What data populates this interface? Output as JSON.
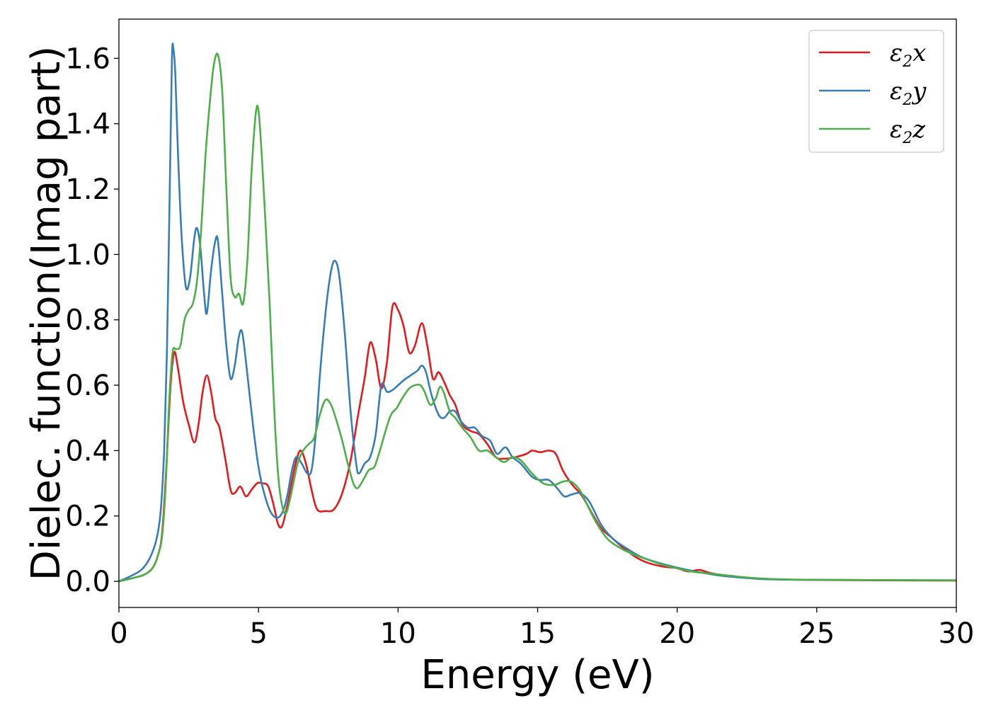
{
  "chart_data": {
    "type": "line",
    "title": "",
    "xlabel": "Energy (eV)",
    "ylabel": "Dielec. function(Imag part)",
    "xlim": [
      0,
      30
    ],
    "ylim": [
      -0.08,
      1.72
    ],
    "x_ticks": [
      0,
      5,
      10,
      15,
      20,
      25,
      30
    ],
    "x_tick_labels": [
      "0",
      "5",
      "10",
      "15",
      "20",
      "25",
      "30"
    ],
    "y_ticks": [
      0.0,
      0.2,
      0.4,
      0.6,
      0.8,
      1.0,
      1.2,
      1.4,
      1.6
    ],
    "y_tick_labels": [
      "0.0",
      "0.2",
      "0.4",
      "0.6",
      "0.8",
      "1.0",
      "1.2",
      "1.4",
      "1.6"
    ],
    "grid": false,
    "legend": {
      "position": "top-right",
      "entries": [
        {
          "base": "ε",
          "sub": "2",
          "axis": "x",
          "color": "#e41a1c"
        },
        {
          "base": "ε",
          "sub": "2",
          "axis": "y",
          "color": "#377eb8"
        },
        {
          "base": "ε",
          "sub": "2",
          "axis": "z",
          "color": "#4daf4a"
        }
      ]
    },
    "series": [
      {
        "color": "#e41a1c",
        "points": [
          [
            0,
            0.0
          ],
          [
            0.5,
            0.01
          ],
          [
            0.9,
            0.02
          ],
          [
            1.2,
            0.04
          ],
          [
            1.4,
            0.08
          ],
          [
            1.55,
            0.15
          ],
          [
            1.7,
            0.35
          ],
          [
            1.85,
            0.6
          ],
          [
            1.98,
            0.7
          ],
          [
            2.1,
            0.66
          ],
          [
            2.3,
            0.55
          ],
          [
            2.5,
            0.48
          ],
          [
            2.7,
            0.425
          ],
          [
            2.85,
            0.48
          ],
          [
            3.0,
            0.58
          ],
          [
            3.15,
            0.63
          ],
          [
            3.3,
            0.58
          ],
          [
            3.45,
            0.5
          ],
          [
            3.6,
            0.47
          ],
          [
            3.8,
            0.38
          ],
          [
            4.0,
            0.28
          ],
          [
            4.15,
            0.27
          ],
          [
            4.35,
            0.29
          ],
          [
            4.55,
            0.26
          ],
          [
            4.75,
            0.28
          ],
          [
            4.95,
            0.3
          ],
          [
            5.15,
            0.3
          ],
          [
            5.35,
            0.29
          ],
          [
            5.55,
            0.23
          ],
          [
            5.7,
            0.175
          ],
          [
            5.85,
            0.17
          ],
          [
            6.05,
            0.24
          ],
          [
            6.3,
            0.35
          ],
          [
            6.5,
            0.4
          ],
          [
            6.7,
            0.36
          ],
          [
            6.9,
            0.28
          ],
          [
            7.1,
            0.22
          ],
          [
            7.4,
            0.215
          ],
          [
            7.7,
            0.22
          ],
          [
            8.0,
            0.27
          ],
          [
            8.3,
            0.37
          ],
          [
            8.55,
            0.5
          ],
          [
            8.8,
            0.62
          ],
          [
            9.0,
            0.73
          ],
          [
            9.2,
            0.68
          ],
          [
            9.4,
            0.59
          ],
          [
            9.6,
            0.67
          ],
          [
            9.8,
            0.84
          ],
          [
            10.0,
            0.83
          ],
          [
            10.2,
            0.78
          ],
          [
            10.4,
            0.7
          ],
          [
            10.6,
            0.72
          ],
          [
            10.85,
            0.79
          ],
          [
            11.05,
            0.72
          ],
          [
            11.25,
            0.62
          ],
          [
            11.45,
            0.64
          ],
          [
            11.65,
            0.61
          ],
          [
            11.85,
            0.57
          ],
          [
            12.05,
            0.54
          ],
          [
            12.3,
            0.48
          ],
          [
            12.6,
            0.46
          ],
          [
            12.9,
            0.45
          ],
          [
            13.2,
            0.42
          ],
          [
            13.5,
            0.38
          ],
          [
            13.8,
            0.375
          ],
          [
            14.2,
            0.38
          ],
          [
            14.6,
            0.39
          ],
          [
            14.8,
            0.4
          ],
          [
            15.1,
            0.395
          ],
          [
            15.4,
            0.4
          ],
          [
            15.65,
            0.39
          ],
          [
            15.9,
            0.34
          ],
          [
            16.2,
            0.3
          ],
          [
            16.6,
            0.26
          ],
          [
            17.0,
            0.2
          ],
          [
            17.3,
            0.16
          ],
          [
            17.7,
            0.13
          ],
          [
            18.1,
            0.1
          ],
          [
            18.6,
            0.07
          ],
          [
            19.0,
            0.055
          ],
          [
            19.5,
            0.045
          ],
          [
            20.0,
            0.04
          ],
          [
            20.4,
            0.03
          ],
          [
            20.8,
            0.035
          ],
          [
            21.2,
            0.025
          ],
          [
            22.0,
            0.015
          ],
          [
            23.0,
            0.008
          ],
          [
            25.0,
            0.004
          ],
          [
            30.0,
            0.002
          ]
        ]
      },
      {
        "color": "#377eb8",
        "points": [
          [
            0,
            0.0
          ],
          [
            0.4,
            0.015
          ],
          [
            0.8,
            0.035
          ],
          [
            1.1,
            0.07
          ],
          [
            1.35,
            0.13
          ],
          [
            1.5,
            0.22
          ],
          [
            1.62,
            0.4
          ],
          [
            1.72,
            0.7
          ],
          [
            1.82,
            1.2
          ],
          [
            1.9,
            1.6
          ],
          [
            1.95,
            1.63
          ],
          [
            2.02,
            1.55
          ],
          [
            2.12,
            1.3
          ],
          [
            2.25,
            1.05
          ],
          [
            2.4,
            0.9
          ],
          [
            2.55,
            0.93
          ],
          [
            2.7,
            1.05
          ],
          [
            2.8,
            1.08
          ],
          [
            2.92,
            1.02
          ],
          [
            3.05,
            0.88
          ],
          [
            3.15,
            0.82
          ],
          [
            3.3,
            0.95
          ],
          [
            3.45,
            1.04
          ],
          [
            3.55,
            1.04
          ],
          [
            3.7,
            0.88
          ],
          [
            3.85,
            0.72
          ],
          [
            4.0,
            0.62
          ],
          [
            4.15,
            0.66
          ],
          [
            4.3,
            0.75
          ],
          [
            4.42,
            0.76
          ],
          [
            4.58,
            0.65
          ],
          [
            4.8,
            0.48
          ],
          [
            5.0,
            0.35
          ],
          [
            5.2,
            0.27
          ],
          [
            5.45,
            0.21
          ],
          [
            5.7,
            0.195
          ],
          [
            5.9,
            0.22
          ],
          [
            6.05,
            0.27
          ],
          [
            6.2,
            0.34
          ],
          [
            6.35,
            0.38
          ],
          [
            6.55,
            0.36
          ],
          [
            6.75,
            0.33
          ],
          [
            6.9,
            0.34
          ],
          [
            7.05,
            0.45
          ],
          [
            7.2,
            0.63
          ],
          [
            7.4,
            0.82
          ],
          [
            7.6,
            0.95
          ],
          [
            7.75,
            0.98
          ],
          [
            7.9,
            0.93
          ],
          [
            8.1,
            0.75
          ],
          [
            8.3,
            0.52
          ],
          [
            8.5,
            0.36
          ],
          [
            8.6,
            0.33
          ],
          [
            8.8,
            0.36
          ],
          [
            9.0,
            0.38
          ],
          [
            9.2,
            0.45
          ],
          [
            9.4,
            0.6
          ],
          [
            9.6,
            0.58
          ],
          [
            9.8,
            0.585
          ],
          [
            10.0,
            0.6
          ],
          [
            10.2,
            0.615
          ],
          [
            10.45,
            0.63
          ],
          [
            10.7,
            0.645
          ],
          [
            10.85,
            0.66
          ],
          [
            11.0,
            0.64
          ],
          [
            11.2,
            0.57
          ],
          [
            11.45,
            0.51
          ],
          [
            11.65,
            0.5
          ],
          [
            11.85,
            0.52
          ],
          [
            12.05,
            0.52
          ],
          [
            12.25,
            0.49
          ],
          [
            12.5,
            0.47
          ],
          [
            12.75,
            0.47
          ],
          [
            13.0,
            0.445
          ],
          [
            13.3,
            0.43
          ],
          [
            13.55,
            0.39
          ],
          [
            13.85,
            0.41
          ],
          [
            14.1,
            0.38
          ],
          [
            14.4,
            0.36
          ],
          [
            14.8,
            0.32
          ],
          [
            15.1,
            0.31
          ],
          [
            15.4,
            0.31
          ],
          [
            15.7,
            0.285
          ],
          [
            15.95,
            0.26
          ],
          [
            16.2,
            0.265
          ],
          [
            16.5,
            0.27
          ],
          [
            16.8,
            0.25
          ],
          [
            17.0,
            0.22
          ],
          [
            17.3,
            0.17
          ],
          [
            17.7,
            0.13
          ],
          [
            18.2,
            0.1
          ],
          [
            18.7,
            0.075
          ],
          [
            19.2,
            0.06
          ],
          [
            19.7,
            0.048
          ],
          [
            20.2,
            0.038
          ],
          [
            20.8,
            0.028
          ],
          [
            21.5,
            0.018
          ],
          [
            22.5,
            0.01
          ],
          [
            24.0,
            0.005
          ],
          [
            30.0,
            0.003
          ]
        ]
      },
      {
        "color": "#4daf4a",
        "points": [
          [
            0,
            0.0
          ],
          [
            0.5,
            0.01
          ],
          [
            0.9,
            0.02
          ],
          [
            1.2,
            0.04
          ],
          [
            1.4,
            0.08
          ],
          [
            1.55,
            0.14
          ],
          [
            1.68,
            0.3
          ],
          [
            1.8,
            0.55
          ],
          [
            1.92,
            0.7
          ],
          [
            2.05,
            0.71
          ],
          [
            2.2,
            0.72
          ],
          [
            2.35,
            0.8
          ],
          [
            2.5,
            0.83
          ],
          [
            2.65,
            0.85
          ],
          [
            2.8,
            0.92
          ],
          [
            2.95,
            1.08
          ],
          [
            3.1,
            1.3
          ],
          [
            3.25,
            1.46
          ],
          [
            3.4,
            1.58
          ],
          [
            3.55,
            1.61
          ],
          [
            3.7,
            1.5
          ],
          [
            3.85,
            1.2
          ],
          [
            4.0,
            0.93
          ],
          [
            4.15,
            0.87
          ],
          [
            4.3,
            0.88
          ],
          [
            4.45,
            0.85
          ],
          [
            4.6,
            0.98
          ],
          [
            4.75,
            1.25
          ],
          [
            4.9,
            1.43
          ],
          [
            5.0,
            1.44
          ],
          [
            5.12,
            1.3
          ],
          [
            5.25,
            1.1
          ],
          [
            5.4,
            0.85
          ],
          [
            5.55,
            0.55
          ],
          [
            5.7,
            0.33
          ],
          [
            5.85,
            0.23
          ],
          [
            6.0,
            0.21
          ],
          [
            6.2,
            0.28
          ],
          [
            6.4,
            0.36
          ],
          [
            6.6,
            0.4
          ],
          [
            6.8,
            0.42
          ],
          [
            7.0,
            0.44
          ],
          [
            7.2,
            0.51
          ],
          [
            7.4,
            0.555
          ],
          [
            7.6,
            0.54
          ],
          [
            7.8,
            0.49
          ],
          [
            8.0,
            0.43
          ],
          [
            8.2,
            0.36
          ],
          [
            8.4,
            0.3
          ],
          [
            8.55,
            0.285
          ],
          [
            8.75,
            0.31
          ],
          [
            8.95,
            0.34
          ],
          [
            9.15,
            0.35
          ],
          [
            9.35,
            0.4
          ],
          [
            9.55,
            0.46
          ],
          [
            9.75,
            0.51
          ],
          [
            9.95,
            0.53
          ],
          [
            10.15,
            0.56
          ],
          [
            10.4,
            0.59
          ],
          [
            10.6,
            0.6
          ],
          [
            10.8,
            0.6
          ],
          [
            10.95,
            0.58
          ],
          [
            11.15,
            0.54
          ],
          [
            11.35,
            0.56
          ],
          [
            11.5,
            0.595
          ],
          [
            11.65,
            0.575
          ],
          [
            11.85,
            0.52
          ],
          [
            12.05,
            0.5
          ],
          [
            12.3,
            0.47
          ],
          [
            12.6,
            0.44
          ],
          [
            12.9,
            0.4
          ],
          [
            13.2,
            0.4
          ],
          [
            13.5,
            0.38
          ],
          [
            13.8,
            0.365
          ],
          [
            14.1,
            0.38
          ],
          [
            14.4,
            0.37
          ],
          [
            14.8,
            0.33
          ],
          [
            15.2,
            0.3
          ],
          [
            15.6,
            0.295
          ],
          [
            15.9,
            0.305
          ],
          [
            16.2,
            0.305
          ],
          [
            16.5,
            0.28
          ],
          [
            16.8,
            0.23
          ],
          [
            17.1,
            0.18
          ],
          [
            17.5,
            0.13
          ],
          [
            18.0,
            0.1
          ],
          [
            18.5,
            0.08
          ],
          [
            19.0,
            0.065
          ],
          [
            19.5,
            0.05
          ],
          [
            20.0,
            0.04
          ],
          [
            20.5,
            0.03
          ],
          [
            21.0,
            0.025
          ],
          [
            21.8,
            0.018
          ],
          [
            22.8,
            0.01
          ],
          [
            24.5,
            0.005
          ],
          [
            30.0,
            0.003
          ]
        ]
      }
    ]
  }
}
